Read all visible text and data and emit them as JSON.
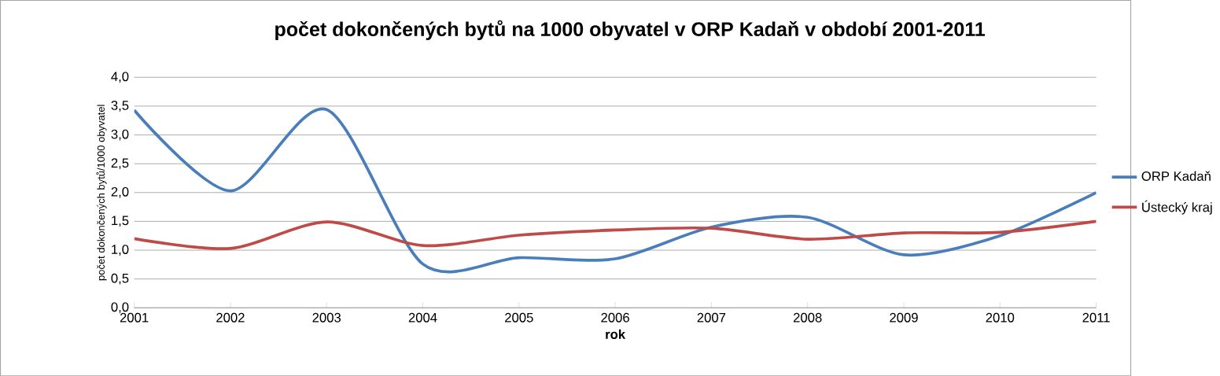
{
  "chart_data": {
    "type": "line",
    "title": "počet dokončených bytů na 1000 obyvatel v ORP Kadaň v období 2001-2011",
    "xlabel": "rok",
    "ylabel": "počet dokončených bytů/1000 obyvatel",
    "x": [
      2001,
      2002,
      2003,
      2004,
      2005,
      2006,
      2007,
      2008,
      2009,
      2010,
      2011
    ],
    "series": [
      {
        "name": "ORP Kadaň",
        "color": "#4a7ebb",
        "values": [
          3.43,
          2.03,
          3.44,
          0.76,
          0.87,
          0.85,
          1.4,
          1.57,
          0.92,
          1.25,
          2.0
        ]
      },
      {
        "name": "Ústecký kraj",
        "color": "#be4b48",
        "values": [
          1.2,
          1.03,
          1.49,
          1.08,
          1.26,
          1.35,
          1.38,
          1.19,
          1.3,
          1.31,
          1.5
        ]
      }
    ],
    "xlim": [
      2001,
      2011
    ],
    "ylim": [
      0,
      4
    ],
    "xticks": [
      2001,
      2002,
      2003,
      2004,
      2005,
      2006,
      2007,
      2008,
      2009,
      2010,
      2011
    ],
    "yticks": [
      {
        "value": 0,
        "label": "0,0"
      },
      {
        "value": 0.5,
        "label": "0,5"
      },
      {
        "value": 1,
        "label": "1,0"
      },
      {
        "value": 1.5,
        "label": "1,5"
      },
      {
        "value": 2,
        "label": "2,0"
      },
      {
        "value": 2.5,
        "label": "2,5"
      },
      {
        "value": 3,
        "label": "3,0"
      },
      {
        "value": 3.5,
        "label": "3,5"
      },
      {
        "value": 4,
        "label": "4,0"
      }
    ],
    "grid": "y",
    "legend": "right",
    "marker": "none",
    "line_style": "solid"
  }
}
